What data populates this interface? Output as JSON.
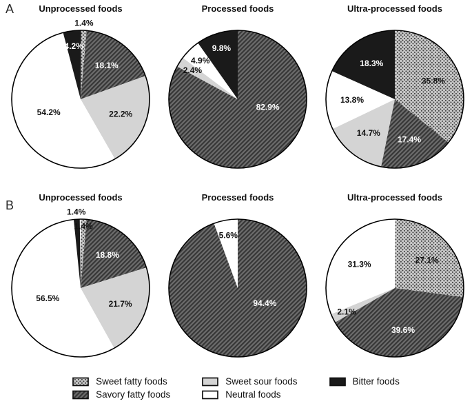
{
  "panels": [
    {
      "id": "A"
    },
    {
      "id": "B"
    }
  ],
  "colors": {
    "dot_pattern_bg": "#c9c9c9",
    "dot_pattern_dot": "#3e3e3e",
    "stripe_pattern_bg": "#6d6d6d",
    "stripe_pattern_line": "#363636",
    "sweet_sour_fill": "#d4d4d4",
    "neutral_fill": "#ffffff",
    "bitter_fill": "#1a1a1a",
    "outline": "#000000",
    "label_dark": "#111111",
    "label_light": "#ffffff"
  },
  "legend": {
    "items": [
      {
        "label": "Sweet fatty foods",
        "category_index": 0,
        "pattern": "dots",
        "column": 0
      },
      {
        "label": "Savory fatty foods",
        "category_index": 1,
        "pattern": "diagonal-stripes",
        "column": 0
      },
      {
        "label": "Sweet sour foods",
        "category_index": 2,
        "pattern": "solid-light-gray",
        "column": 1
      },
      {
        "label": "Neutral foods",
        "category_index": 3,
        "pattern": "solid-white",
        "column": 1
      },
      {
        "label": "Bitter foods",
        "category_index": 4,
        "pattern": "solid-black",
        "column": 2
      }
    ]
  },
  "chart_data": {
    "type": "pie",
    "layout": "2-rows-x-3-pies",
    "direction": "clockwise",
    "start_angle_deg": 0,
    "categories": [
      "Sweet fatty foods",
      "Savory fatty foods",
      "Sweet sour foods",
      "Neutral foods",
      "Bitter foods"
    ],
    "pies": [
      {
        "panel": "A",
        "title": "Unprocessed foods",
        "values": [
          1.4,
          18.1,
          22.2,
          54.2,
          4.2
        ],
        "labels": [
          "1.4%",
          "18.1%",
          "22.2%",
          "54.2%",
          "4.2%"
        ]
      },
      {
        "panel": "A",
        "title": "Processed foods",
        "values": [
          0,
          82.9,
          2.4,
          4.9,
          9.8
        ],
        "labels": [
          null,
          "82.9%",
          "2.4%",
          "4.9%",
          "9.8%"
        ]
      },
      {
        "panel": "A",
        "title": "Ultra-processed foods",
        "values": [
          35.8,
          17.4,
          14.7,
          13.8,
          18.3
        ],
        "labels": [
          "35.8%",
          "17.4%",
          "14.7%",
          "13.8%",
          "18.3%"
        ]
      },
      {
        "panel": "B",
        "title": "Unprocessed foods",
        "values": [
          1.4,
          18.8,
          21.7,
          56.5,
          1.4
        ],
        "labels": [
          "1.4%",
          "18.8%",
          "21.7%",
          "56.5%",
          "1.4%"
        ],
        "label_pos_overrides": {
          "0": "in"
        }
      },
      {
        "panel": "B",
        "title": "Processed foods",
        "values": [
          0,
          94.4,
          0,
          5.6,
          0
        ],
        "labels": [
          null,
          "94.4%",
          null,
          "5.6%",
          null
        ]
      },
      {
        "panel": "B",
        "title": "Ultra-processed foods",
        "values": [
          27.1,
          39.6,
          2.1,
          31.3,
          0
        ],
        "labels": [
          "27.1%",
          "39.6%",
          "2.1%",
          "31.3%",
          null
        ]
      }
    ]
  }
}
